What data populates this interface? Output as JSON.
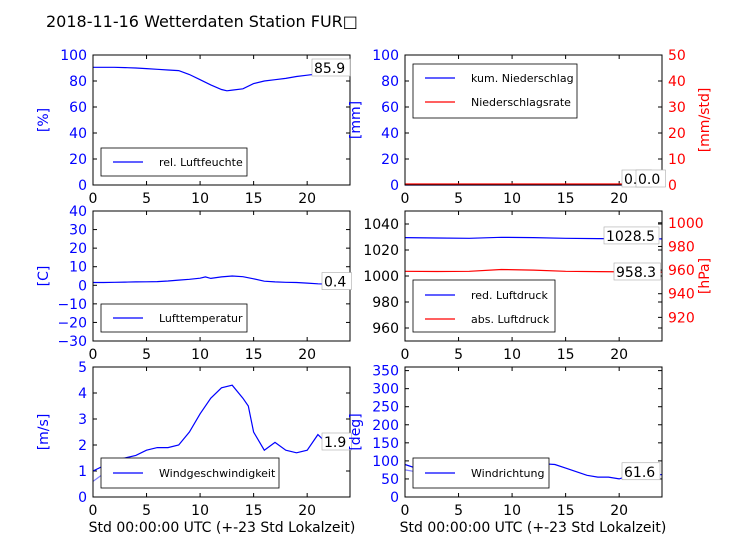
{
  "figure": {
    "title": "2018-11-16 Wetterdaten Station FUR□",
    "xlabel": "Std 00:00:00 UTC (+-23 Std Lokalzeit)"
  },
  "colors": {
    "blue": "#0000ff",
    "red": "#ff0000",
    "lightblue": "#7f7fff",
    "black": "#000000"
  },
  "chart_data": [
    {
      "id": "p1",
      "type": "line",
      "ylabel": "[%]",
      "ylim": [
        0,
        100
      ],
      "yticks": [
        "0",
        "20",
        "40",
        "60",
        "80",
        "100"
      ],
      "xlim": [
        0,
        24
      ],
      "xticks": [
        "0",
        "5",
        "10",
        "15",
        "20"
      ],
      "series": [
        {
          "name": "rel. Luftfeuchte",
          "color": "#0000ff",
          "x": [
            0,
            1,
            2,
            3,
            4,
            5,
            6,
            7,
            8,
            9,
            10,
            11,
            12,
            12.5,
            13,
            14,
            15,
            16,
            17,
            18,
            19,
            20,
            21,
            22,
            23,
            24
          ],
          "y": [
            90.5,
            90.5,
            90.5,
            90.3,
            90,
            89.5,
            89,
            88.5,
            88,
            85,
            81,
            77,
            73.5,
            72.5,
            73,
            74,
            78,
            80,
            81,
            82,
            83.5,
            84.5,
            85.5,
            86,
            86,
            86
          ]
        }
      ],
      "value_label": "85.9"
    },
    {
      "id": "p2",
      "type": "line",
      "ylabel": "[mm]",
      "ylabel2": "[mm/std]",
      "ylim": [
        0,
        100
      ],
      "ylim2": [
        0,
        50
      ],
      "yticks": [
        "0",
        "20",
        "40",
        "60",
        "80",
        "100"
      ],
      "yticks2": [
        "0",
        "10",
        "20",
        "30",
        "40",
        "50"
      ],
      "xlim": [
        0,
        24
      ],
      "xticks": [
        "0",
        "5",
        "10",
        "15",
        "20"
      ],
      "series": [
        {
          "name": "kum. Niederschlag",
          "color": "#0000ff",
          "x": [
            0,
            24
          ],
          "y": [
            0,
            0
          ]
        },
        {
          "name": "Niederschlagsrate",
          "color": "#ff0000",
          "x": [
            0,
            24
          ],
          "y": [
            0,
            0
          ]
        }
      ],
      "value_label": "0.0",
      "value_label2": "0.0"
    },
    {
      "id": "p3",
      "type": "line",
      "ylabel": "[C]",
      "ylim": [
        -30,
        40
      ],
      "yticks": [
        "−30",
        "−20",
        "−10",
        "0",
        "10",
        "20",
        "30",
        "40"
      ],
      "xlim": [
        0,
        24
      ],
      "xticks": [
        "0",
        "5",
        "10",
        "15",
        "20"
      ],
      "series": [
        {
          "name": "Lufttemperatur",
          "color": "#0000ff",
          "x": [
            0,
            1,
            2,
            3,
            4,
            5,
            6,
            7,
            8,
            9,
            10,
            10.5,
            11,
            12,
            13,
            14,
            15,
            16,
            17,
            18,
            19,
            20,
            21,
            22,
            23,
            24
          ],
          "y": [
            1.5,
            1.5,
            1.6,
            1.7,
            1.8,
            1.9,
            2,
            2.3,
            2.8,
            3.2,
            3.8,
            4.5,
            3.7,
            4.5,
            5,
            4.6,
            3.5,
            2.2,
            1.8,
            1.6,
            1.5,
            1.2,
            0.8,
            0.6,
            0.4,
            0.4
          ]
        }
      ],
      "value_label": "0.4"
    },
    {
      "id": "p4",
      "type": "line",
      "ylabel2": "[hPa]",
      "ylim": [
        950,
        1050
      ],
      "ylim2": [
        900,
        1010
      ],
      "yticks": [
        "960",
        "980",
        "1000",
        "1020",
        "1040"
      ],
      "yticks2": [
        "920",
        "940",
        "960",
        "980",
        "1000"
      ],
      "xlim": [
        0,
        24
      ],
      "xticks": [
        "0",
        "5",
        "10",
        "15",
        "20"
      ],
      "series": [
        {
          "name": "red. Luftdruck",
          "color": "#0000ff",
          "x": [
            0,
            3,
            6,
            9,
            12,
            15,
            18,
            21,
            24
          ],
          "y": [
            1029.5,
            1029.2,
            1029,
            1029.8,
            1029.5,
            1029,
            1028.8,
            1028.6,
            1028.5
          ]
        },
        {
          "name": "abs. Luftdruck",
          "color": "#ff0000",
          "x": [
            0,
            3,
            6,
            9,
            12,
            15,
            18,
            21,
            24
          ],
          "y": [
            959,
            958.8,
            959,
            960.5,
            960,
            959,
            958.7,
            958.5,
            958.3
          ]
        }
      ],
      "value_label": "1028.5",
      "value_label2": "958.3"
    },
    {
      "id": "p5",
      "type": "line",
      "ylabel": "[m/s]",
      "ylim": [
        0,
        5
      ],
      "yticks": [
        "0",
        "1",
        "2",
        "3",
        "4",
        "5"
      ],
      "xlim": [
        0,
        24
      ],
      "xticks": [
        "0",
        "5",
        "10",
        "15",
        "20"
      ],
      "series": [
        {
          "name": "Windgeschwindigkeit",
          "color": "#0000ff",
          "x": [
            0,
            1,
            2,
            3,
            4,
            5,
            6,
            7,
            8,
            9,
            10,
            11,
            12,
            13,
            14,
            14.5,
            15,
            16,
            17,
            18,
            19,
            20,
            21,
            22,
            23,
            24
          ],
          "y": [
            1.0,
            1.2,
            1.4,
            1.5,
            1.6,
            1.8,
            1.9,
            1.9,
            2.0,
            2.5,
            3.2,
            3.8,
            4.2,
            4.3,
            3.8,
            3.5,
            2.5,
            1.8,
            2.1,
            1.8,
            1.7,
            1.8,
            2.4,
            2.0,
            2.1,
            2.1
          ]
        },
        {
          "name": "",
          "color": "#7f7fff",
          "x": [
            0,
            1,
            2,
            3,
            4,
            5,
            6,
            7,
            8,
            9,
            10
          ],
          "y": [
            0.6,
            0.9,
            1.0,
            0.9,
            1.1,
            1.0,
            1.1,
            1.2,
            1.3,
            1.3,
            1.4
          ]
        }
      ],
      "value_label": "1.9"
    },
    {
      "id": "p6",
      "type": "line",
      "ylabel": "[deg]",
      "ylim": [
        0,
        360
      ],
      "yticks": [
        "0",
        "50",
        "100",
        "150",
        "200",
        "250",
        "300",
        "350"
      ],
      "xlim": [
        0,
        24
      ],
      "xticks": [
        "0",
        "5",
        "10",
        "15",
        "20"
      ],
      "series": [
        {
          "name": "Windrichtung",
          "color": "#0000ff",
          "x": [
            0,
            1,
            2,
            3,
            4,
            5,
            6,
            7,
            8,
            9,
            10,
            11,
            12,
            13,
            14,
            15,
            16,
            17,
            18,
            19,
            20,
            21,
            22,
            23,
            24
          ],
          "y": [
            90,
            80,
            75,
            78,
            72,
            80,
            85,
            75,
            78,
            82,
            85,
            88,
            90,
            92,
            90,
            80,
            70,
            60,
            55,
            55,
            50,
            60,
            65,
            62,
            62
          ]
        },
        {
          "name": "",
          "color": "#7f7fff",
          "x": [
            0,
            1,
            2,
            3,
            4,
            5,
            6,
            7,
            8,
            9,
            10,
            11,
            12,
            13
          ],
          "y": [
            75,
            70,
            72,
            68,
            70,
            75,
            72,
            70,
            75,
            72,
            70,
            75,
            72,
            70
          ]
        }
      ],
      "value_label": "61.6"
    }
  ]
}
